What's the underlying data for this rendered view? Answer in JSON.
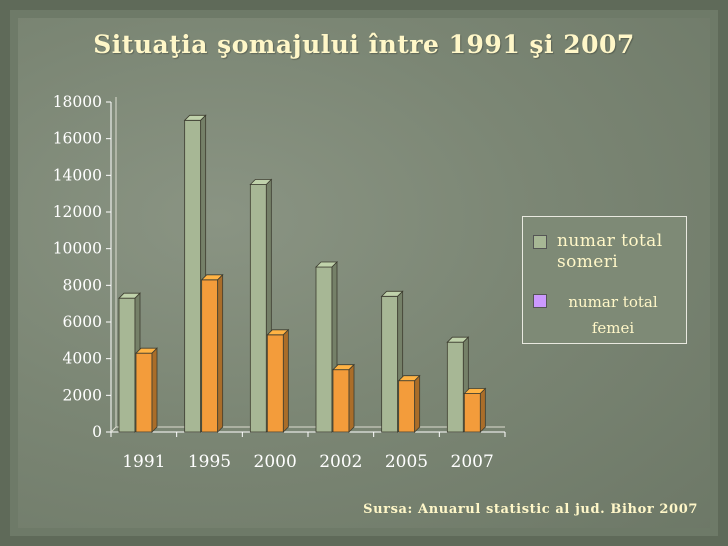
{
  "slide": {
    "title": "Situaţia şomajului între 1991 şi 2007",
    "source": "Sursa: Anuarul statistic al jud. Bihor 2007"
  },
  "legend": {
    "series1_label": "numar total someri",
    "series2_label": "numar total femei"
  },
  "colors": {
    "series1": "#a7b795",
    "series2": "#f39c3b",
    "legend_swatch2": "#cc99ff",
    "text": "#fff7c8"
  },
  "chart_data": {
    "type": "bar",
    "categories": [
      "1991",
      "1995",
      "2000",
      "2002",
      "2005",
      "2007"
    ],
    "series": [
      {
        "name": "numar total someri",
        "values": [
          7300,
          17000,
          13500,
          9000,
          7400,
          4900
        ]
      },
      {
        "name": "numar total femei",
        "values": [
          4300,
          8300,
          5300,
          3400,
          2800,
          2100
        ]
      }
    ],
    "ylim": [
      0,
      18000
    ],
    "yticks": [
      "0",
      "2000",
      "4000",
      "6000",
      "8000",
      "10000",
      "12000",
      "14000",
      "16000",
      "18000"
    ],
    "grid": false,
    "legend_position": "right",
    "style": "3d-columns"
  }
}
